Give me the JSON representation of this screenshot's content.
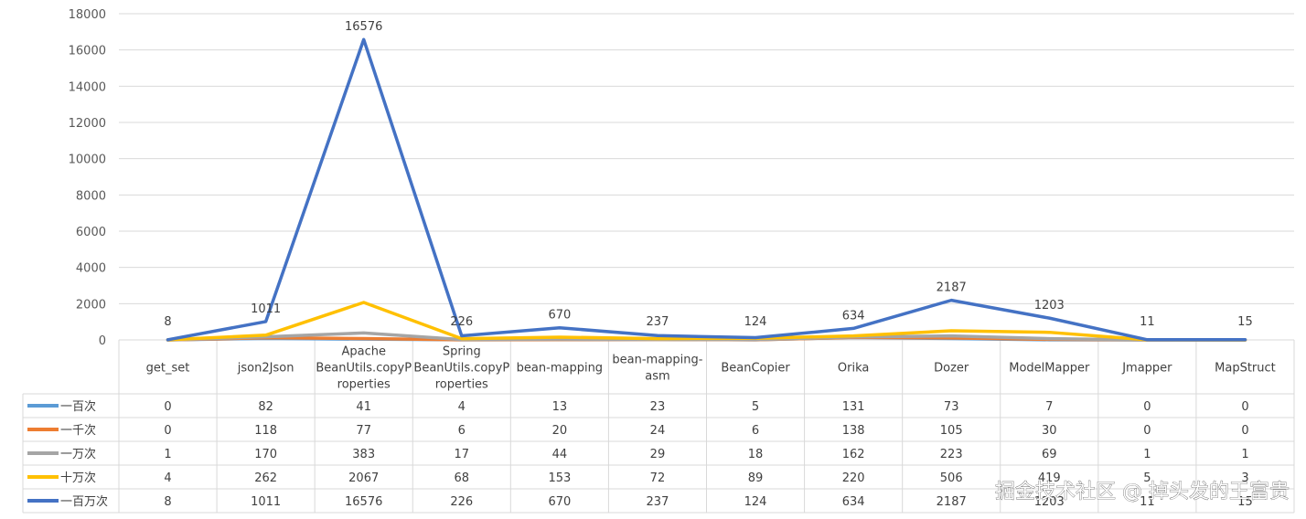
{
  "chart_data": {
    "type": "line",
    "title": "",
    "xlabel": "",
    "ylabel": "",
    "ylim": [
      0,
      18000
    ],
    "yticks": [
      0,
      2000,
      4000,
      6000,
      8000,
      10000,
      12000,
      14000,
      16000,
      18000
    ],
    "grid": true,
    "legend": "data-table-left",
    "categories": [
      "get_set",
      "json2Json",
      "Apache BeanUtils.copyProperties",
      "Spring BeanUtils.copyProperties",
      "bean-mapping",
      "bean-mapping-asm",
      "BeanCopier",
      "Orika",
      "Dozer",
      "ModelMapper",
      "Jmapper",
      "MapStruct"
    ],
    "category_lines": [
      [
        "get_set"
      ],
      [
        "json2Json"
      ],
      [
        "Apache",
        "BeanUtils.copyP",
        "roperties"
      ],
      [
        "Spring",
        "BeanUtils.copyP",
        "roperties"
      ],
      [
        "bean-mapping"
      ],
      [
        "bean-mapping-",
        "asm"
      ],
      [
        "BeanCopier"
      ],
      [
        "Orika"
      ],
      [
        "Dozer"
      ],
      [
        "ModelMapper"
      ],
      [
        "Jmapper"
      ],
      [
        "MapStruct"
      ]
    ],
    "series": [
      {
        "name": "一百次",
        "color": "#5B9BD5",
        "values": [
          0,
          82,
          41,
          4,
          13,
          23,
          5,
          131,
          73,
          7,
          0,
          0
        ]
      },
      {
        "name": "一千次",
        "color": "#ED7D31",
        "values": [
          0,
          118,
          77,
          6,
          20,
          24,
          6,
          138,
          105,
          30,
          0,
          0
        ]
      },
      {
        "name": "一万次",
        "color": "#A5A5A5",
        "values": [
          1,
          170,
          383,
          17,
          44,
          29,
          18,
          162,
          223,
          69,
          1,
          1
        ]
      },
      {
        "name": "十万次",
        "color": "#FFC000",
        "values": [
          4,
          262,
          2067,
          68,
          153,
          72,
          89,
          220,
          506,
          419,
          5,
          3
        ]
      },
      {
        "name": "一百万次",
        "color": "#4472C4",
        "values": [
          8,
          1011,
          16576,
          226,
          670,
          237,
          124,
          634,
          2187,
          1203,
          11,
          15
        ]
      }
    ],
    "data_labels_series": "一百万次"
  },
  "watermark": "掘金技术社区 @ 掉头发的王富贵",
  "colors": {
    "grid": "#D9D9D9",
    "table_border": "#D9D9D9"
  }
}
